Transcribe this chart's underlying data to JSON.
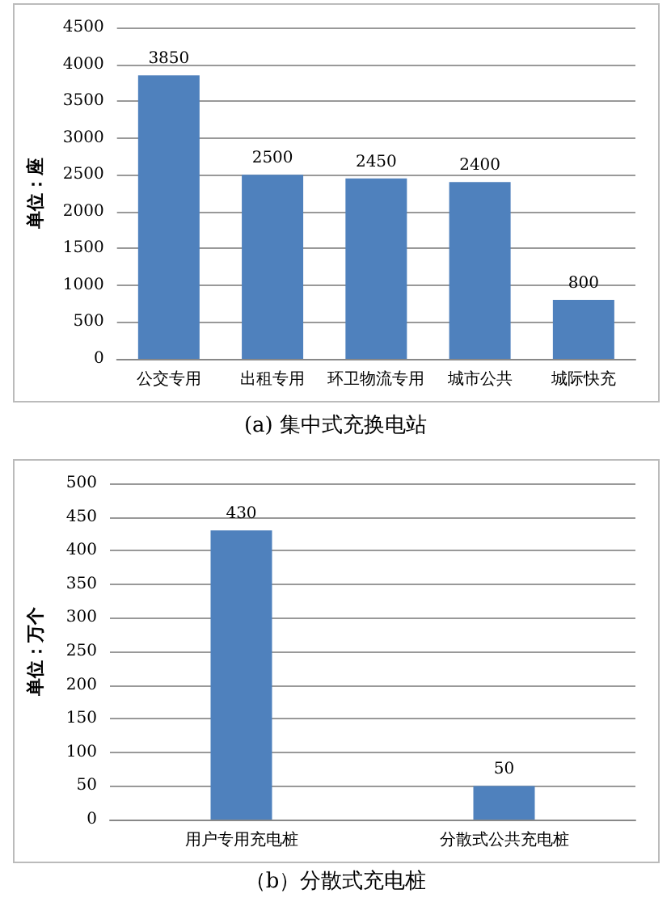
{
  "chart_data": [
    {
      "type": "bar",
      "title": "(a) 集中式充换电站",
      "ylabel": "单位：座",
      "categories": [
        "公交专用",
        "出租专用",
        "环卫物流专用",
        "城市公共",
        "城际快充"
      ],
      "values": [
        3850,
        2500,
        2450,
        2400,
        800
      ],
      "color": "#4f81bd",
      "ylim": [
        0,
        4500
      ],
      "yticks": [
        0,
        500,
        1000,
        1500,
        2000,
        2500,
        3000,
        3500,
        4000,
        4500
      ],
      "grid": "y",
      "data_labels": true
    },
    {
      "type": "bar",
      "title": "（b）分散式充电桩",
      "ylabel": "单位：万个",
      "categories": [
        "用户专用充电桩",
        "分散式公共充电桩"
      ],
      "values": [
        430,
        50
      ],
      "color": "#4f81bd",
      "ylim": [
        0,
        500
      ],
      "yticks": [
        0,
        50,
        100,
        150,
        200,
        250,
        300,
        350,
        400,
        450,
        500
      ],
      "grid": "y",
      "data_labels": true
    }
  ]
}
